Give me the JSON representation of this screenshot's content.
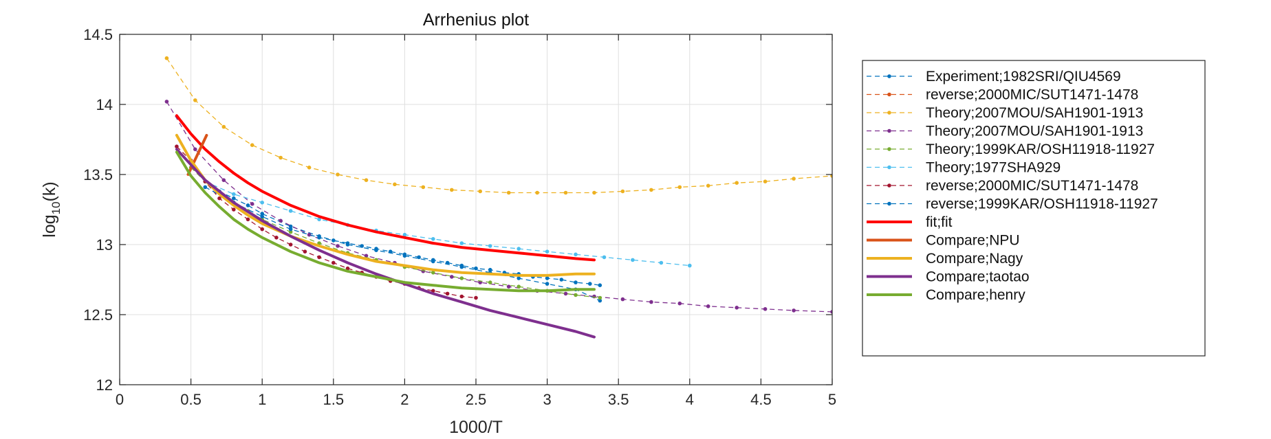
{
  "chart_data": {
    "type": "line",
    "title": "Arrhenius plot",
    "xlabel": "1000/T",
    "ylabel_base": "log",
    "ylabel_sub": "10",
    "ylabel_arg": "(k)",
    "xlim": [
      0,
      5
    ],
    "ylim": [
      12,
      14.5
    ],
    "x_ticks": [
      0,
      0.5,
      1,
      1.5,
      2,
      2.5,
      3,
      3.5,
      4,
      4.5,
      5
    ],
    "y_ticks": [
      12,
      12.5,
      13,
      13.5,
      14,
      14.5
    ],
    "x_tick_labels": [
      "0",
      "0.5",
      "1",
      "1.5",
      "2",
      "2.5",
      "3",
      "3.5",
      "4",
      "4.5",
      "5"
    ],
    "y_tick_labels": [
      "12",
      "12.5",
      "13",
      "13.5",
      "14",
      "14.5"
    ],
    "grid": true,
    "legend_position": "outside-right",
    "series": [
      {
        "name": "Experiment;1982SRI/QIU4569",
        "color": "#0072BD",
        "style": "dashed-markers",
        "x": [
          0.6,
          0.7,
          0.8,
          0.9,
          1.0,
          1.2,
          1.4,
          1.6,
          1.8,
          2.0,
          2.2,
          2.4,
          2.6,
          2.8,
          3.0,
          3.2,
          3.37
        ],
        "y": [
          13.45,
          13.38,
          13.33,
          13.28,
          13.22,
          13.13,
          13.06,
          13.0,
          12.96,
          12.92,
          12.88,
          12.84,
          12.8,
          12.76,
          12.72,
          12.68,
          12.6
        ]
      },
      {
        "name": "reverse;2000MIC/SUT1471-1478",
        "color": "#D95319",
        "style": "dashed-markers",
        "x": [],
        "y": []
      },
      {
        "name": "Theory;2007MOU/SAH1901-1913",
        "color": "#EDB120",
        "style": "dashed-markers",
        "x": [
          0.33,
          0.53,
          0.73,
          0.93,
          1.13,
          1.33,
          1.53,
          1.73,
          1.93,
          2.13,
          2.33,
          2.53,
          2.73,
          2.93,
          3.13,
          3.33,
          3.53,
          3.73,
          3.93,
          4.13,
          4.33,
          4.53,
          4.73,
          5.0
        ],
        "y": [
          14.33,
          14.03,
          13.84,
          13.71,
          13.62,
          13.55,
          13.5,
          13.46,
          13.43,
          13.41,
          13.39,
          13.38,
          13.37,
          13.37,
          13.37,
          13.37,
          13.38,
          13.39,
          13.41,
          13.42,
          13.44,
          13.45,
          13.47,
          13.49
        ]
      },
      {
        "name": "Theory;2007MOU/SAH1901-1913",
        "color": "#7E2F8E",
        "style": "dashed-markers",
        "x": [
          0.33,
          0.53,
          0.73,
          0.93,
          1.13,
          1.33,
          1.53,
          1.73,
          1.93,
          2.13,
          2.33,
          2.53,
          2.73,
          2.93,
          3.13,
          3.33,
          3.53,
          3.73,
          3.93,
          4.13,
          4.33,
          4.53,
          4.73,
          5.0
        ],
        "y": [
          14.02,
          13.68,
          13.46,
          13.29,
          13.17,
          13.07,
          12.99,
          12.92,
          12.87,
          12.81,
          12.77,
          12.73,
          12.7,
          12.67,
          12.65,
          12.63,
          12.61,
          12.59,
          12.58,
          12.56,
          12.55,
          12.54,
          12.53,
          12.52
        ]
      },
      {
        "name": "Theory;1999KAR/OSH11918-11927",
        "color": "#77AC30",
        "style": "dashed-markers",
        "x": [
          0.5,
          0.6,
          0.7,
          0.8,
          0.9,
          1.0,
          1.2,
          1.4,
          1.6,
          1.8,
          2.0,
          2.2,
          2.4,
          2.6,
          2.8,
          3.0,
          3.2,
          3.37
        ],
        "y": [
          13.55,
          13.45,
          13.37,
          13.3,
          13.24,
          13.18,
          13.09,
          13.01,
          12.94,
          12.89,
          12.84,
          12.8,
          12.76,
          12.73,
          12.7,
          12.67,
          12.64,
          12.62
        ]
      },
      {
        "name": "Theory;1977SHA929",
        "color": "#4DBEEE",
        "style": "dashed-markers",
        "x": [
          0.6,
          0.8,
          1.0,
          1.2,
          1.4,
          1.6,
          1.8,
          2.0,
          2.2,
          2.4,
          2.6,
          2.8,
          3.0,
          3.2,
          3.4,
          3.6,
          3.8,
          4.0
        ],
        "y": [
          13.45,
          13.36,
          13.3,
          13.24,
          13.18,
          13.14,
          13.1,
          13.07,
          13.04,
          13.01,
          12.99,
          12.97,
          12.95,
          12.93,
          12.91,
          12.89,
          12.87,
          12.85
        ]
      },
      {
        "name": "reverse;2000MIC/SUT1471-1478",
        "color": "#A2142F",
        "style": "dashed-markers",
        "x": [
          0.4,
          0.5,
          0.6,
          0.7,
          0.8,
          0.9,
          1.0,
          1.1,
          1.2,
          1.3,
          1.4,
          1.5,
          1.6,
          1.7,
          1.8,
          1.9,
          2.0,
          2.1,
          2.2,
          2.3,
          2.4,
          2.5
        ],
        "y": [
          13.7,
          13.6,
          13.45,
          13.33,
          13.25,
          13.18,
          13.11,
          13.05,
          13.0,
          12.95,
          12.91,
          12.87,
          12.83,
          12.8,
          12.77,
          12.74,
          12.72,
          12.69,
          12.67,
          12.65,
          12.63,
          12.62
        ]
      },
      {
        "name": "reverse;1999KAR/OSH11918-11927",
        "color": "#0072BD",
        "style": "dashed-markers",
        "x": [
          0.6,
          0.8,
          1.0,
          1.2,
          1.4,
          1.5,
          1.6,
          1.7,
          1.8,
          1.9,
          2.0,
          2.1,
          2.2,
          2.3,
          2.4,
          2.5,
          2.6,
          2.7,
          2.8,
          2.9,
          3.0,
          3.1,
          3.2,
          3.3,
          3.37
        ],
        "y": [
          13.41,
          13.3,
          13.2,
          13.11,
          13.05,
          13.03,
          13.01,
          12.99,
          12.97,
          12.95,
          12.93,
          12.91,
          12.89,
          12.87,
          12.85,
          12.83,
          12.82,
          12.8,
          12.79,
          12.77,
          12.76,
          12.75,
          12.73,
          12.72,
          12.71
        ]
      },
      {
        "name": "fit;fit",
        "color": "#FF0000",
        "style": "solid",
        "x": [
          0.4,
          0.5,
          0.6,
          0.7,
          0.8,
          0.9,
          1.0,
          1.2,
          1.4,
          1.6,
          1.8,
          2.0,
          2.2,
          2.4,
          2.6,
          2.8,
          3.0,
          3.2,
          3.33
        ],
        "y": [
          13.92,
          13.79,
          13.68,
          13.59,
          13.51,
          13.44,
          13.38,
          13.28,
          13.2,
          13.14,
          13.09,
          13.05,
          13.01,
          12.98,
          12.96,
          12.94,
          12.92,
          12.9,
          12.89
        ]
      },
      {
        "name": "Compare;NPU",
        "color": "#D95319",
        "style": "solid",
        "x": [
          0.48,
          0.61
        ],
        "y": [
          13.5,
          13.78
        ]
      },
      {
        "name": "Compare;Nagy",
        "color": "#EDB120",
        "style": "solid",
        "x": [
          0.4,
          0.5,
          0.6,
          0.7,
          0.8,
          0.9,
          1.0,
          1.2,
          1.4,
          1.6,
          1.8,
          2.0,
          2.2,
          2.4,
          2.6,
          2.8,
          3.0,
          3.2,
          3.33
        ],
        "y": [
          13.78,
          13.6,
          13.46,
          13.36,
          13.28,
          13.21,
          13.15,
          13.06,
          12.99,
          12.93,
          12.88,
          12.85,
          12.82,
          12.8,
          12.79,
          12.78,
          12.78,
          12.79,
          12.79
        ]
      },
      {
        "name": "Compare;taotao",
        "color": "#7E2F8E",
        "style": "solid",
        "x": [
          0.4,
          0.6,
          0.8,
          1.0,
          1.2,
          1.4,
          1.6,
          1.8,
          2.0,
          2.2,
          2.4,
          2.6,
          2.8,
          3.0,
          3.2,
          3.33
        ],
        "y": [
          13.68,
          13.46,
          13.3,
          13.17,
          13.06,
          12.96,
          12.87,
          12.79,
          12.72,
          12.65,
          12.59,
          12.53,
          12.48,
          12.43,
          12.38,
          12.34
        ]
      },
      {
        "name": "Compare;henry",
        "color": "#77AC30",
        "style": "solid",
        "x": [
          0.4,
          0.5,
          0.6,
          0.7,
          0.8,
          0.9,
          1.0,
          1.2,
          1.4,
          1.6,
          1.8,
          2.0,
          2.2,
          2.4,
          2.6,
          2.8,
          3.0,
          3.2,
          3.33
        ],
        "y": [
          13.66,
          13.49,
          13.37,
          13.27,
          13.18,
          13.11,
          13.05,
          12.95,
          12.87,
          12.81,
          12.77,
          12.73,
          12.71,
          12.69,
          12.68,
          12.67,
          12.67,
          12.68,
          12.68
        ]
      }
    ]
  }
}
